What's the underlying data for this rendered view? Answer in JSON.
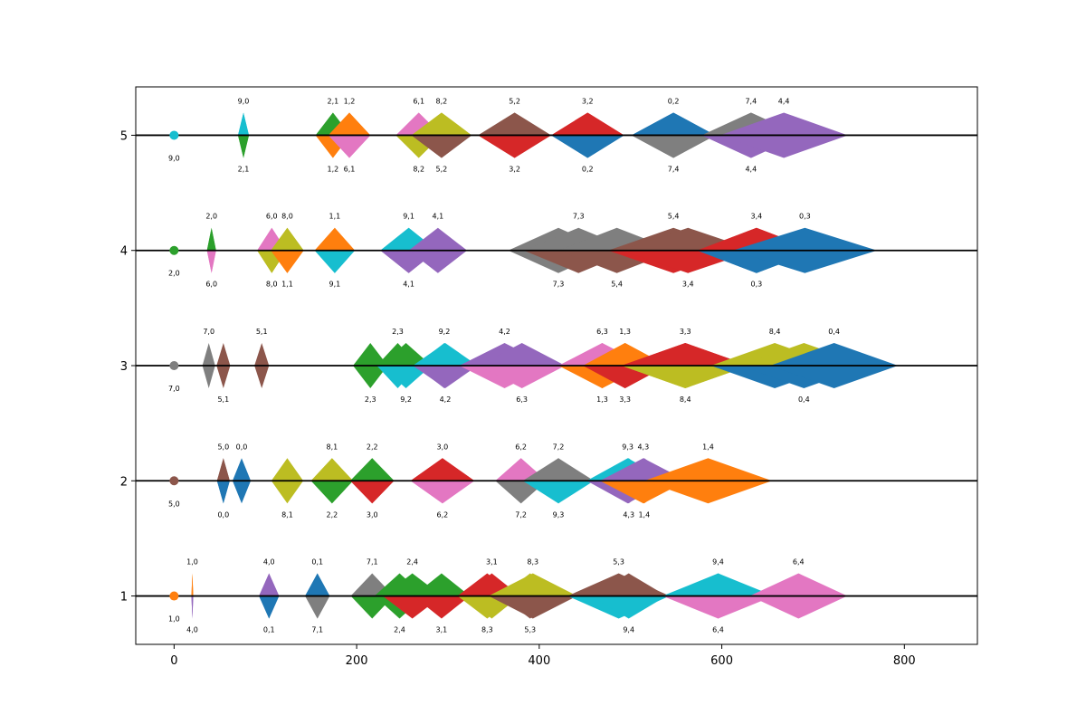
{
  "chart_data": {
    "type": "diamond-timeline",
    "title": "",
    "xlabel": "",
    "ylabel": "",
    "xlim": [
      -42,
      880
    ],
    "ylim": [
      0.58,
      5.42
    ],
    "xticks": [
      0,
      200,
      400,
      600,
      800
    ],
    "yticks": [
      1,
      2,
      3,
      4,
      5
    ],
    "grid": false,
    "colors": {
      "0": "#1f77b4",
      "1": "#ff7f0e",
      "2": "#2ca02c",
      "3": "#d62728",
      "4": "#9467bd",
      "5": "#8c564b",
      "6": "#e377c2",
      "7": "#7f7f7f",
      "8": "#bcbd22",
      "9": "#17becf"
    },
    "rows": [
      {
        "y": 1,
        "origin": {
          "x": 0,
          "color_id": "1",
          "label": "1,0"
        },
        "diamonds": [
          {
            "label": "1,0",
            "x": 20,
            "w": 2,
            "pos": "top",
            "up": "1",
            "down": "4"
          },
          {
            "label": "4,0",
            "x": 20,
            "w": 2,
            "pos": "bottom",
            "up": "1",
            "down": "4"
          },
          {
            "label": "4,0",
            "x": 104,
            "w": 22,
            "pos": "top",
            "up": "4",
            "down": "0"
          },
          {
            "label": "0,1",
            "x": 104,
            "w": 22,
            "pos": "bottom",
            "up": "4",
            "down": "0"
          },
          {
            "label": "0,1",
            "x": 157,
            "w": 27,
            "pos": "top",
            "up": "0",
            "down": "7"
          },
          {
            "label": "7,1",
            "x": 157,
            "w": 27,
            "pos": "bottom",
            "up": "0",
            "down": "7"
          },
          {
            "label": "7,1",
            "x": 217,
            "w": 47,
            "pos": "top",
            "up": "7",
            "down": "2"
          },
          {
            "label": "2,4",
            "x": 247,
            "w": 55,
            "pos": "bottom",
            "up": "2",
            "down": "2"
          },
          {
            "label": "2,4",
            "x": 261,
            "w": 65,
            "pos": "top",
            "up": "2",
            "down": "3"
          },
          {
            "label": "3,1",
            "x": 293,
            "w": 62,
            "pos": "bottom",
            "up": "2",
            "down": "3"
          },
          {
            "label": "3,1",
            "x": 348,
            "w": 62,
            "pos": "top",
            "up": "3",
            "down": "8"
          },
          {
            "label": "8,3",
            "x": 343,
            "w": 65,
            "pos": "bottom",
            "up": "3",
            "down": "8"
          },
          {
            "label": "8,3",
            "x": 393,
            "w": 97,
            "pos": "top",
            "up": "8",
            "down": "5"
          },
          {
            "label": "5,3",
            "x": 390,
            "w": 65,
            "pos": "bottom",
            "up": "8",
            "down": "5"
          },
          {
            "label": "5,3",
            "x": 487,
            "w": 112,
            "pos": "top",
            "up": "5",
            "down": "9"
          },
          {
            "label": "9,4",
            "x": 498,
            "w": 83,
            "pos": "bottom",
            "up": "5",
            "down": "9"
          },
          {
            "label": "9,4",
            "x": 596,
            "w": 122,
            "pos": "top",
            "up": "9",
            "down": "6"
          },
          {
            "label": "6,4",
            "x": 596,
            "w": 82,
            "pos": "bottom",
            "up": "9",
            "down": "6"
          },
          {
            "label": "6,4",
            "x": 684,
            "w": 107,
            "pos": "top",
            "up": "6",
            "down": "6"
          }
        ]
      },
      {
        "y": 2,
        "origin": {
          "x": 0,
          "color_id": "5",
          "label": "5,0"
        },
        "diamonds": [
          {
            "label": "5,0",
            "x": 54,
            "w": 14,
            "pos": "top",
            "up": "5",
            "down": "0"
          },
          {
            "label": "0,0",
            "x": 54,
            "w": 14,
            "pos": "bottom",
            "up": "5",
            "down": "0"
          },
          {
            "label": "0,0",
            "x": 74,
            "w": 20,
            "pos": "top",
            "up": "0",
            "down": "0"
          },
          {
            "label": "8,1",
            "x": 124,
            "w": 35,
            "pos": "bottom",
            "up": "8",
            "down": "8"
          },
          {
            "label": "8,1",
            "x": 173,
            "w": 46,
            "pos": "top",
            "up": "8",
            "down": "2"
          },
          {
            "label": "2,2",
            "x": 173,
            "w": 46,
            "pos": "bottom",
            "up": "8",
            "down": "2"
          },
          {
            "label": "2,2",
            "x": 217,
            "w": 48,
            "pos": "top",
            "up": "2",
            "down": "3"
          },
          {
            "label": "3,0",
            "x": 217,
            "w": 48,
            "pos": "bottom",
            "up": "2",
            "down": "3"
          },
          {
            "label": "3,0",
            "x": 294,
            "w": 70,
            "pos": "top",
            "up": "3",
            "down": "6"
          },
          {
            "label": "6,2",
            "x": 294,
            "w": 70,
            "pos": "bottom",
            "up": "3",
            "down": "6"
          },
          {
            "label": "6,2",
            "x": 380,
            "w": 56,
            "pos": "top",
            "up": "6",
            "down": "7"
          },
          {
            "label": "7,2",
            "x": 380,
            "w": 56,
            "pos": "bottom",
            "up": "6",
            "down": "7"
          },
          {
            "label": "7,2",
            "x": 421,
            "w": 78,
            "pos": "top",
            "up": "7",
            "down": "9"
          },
          {
            "label": "9,3",
            "x": 421,
            "w": 61,
            "pos": "bottom",
            "up": "7",
            "down": "9"
          },
          {
            "label": "9,3",
            "x": 497,
            "w": 90,
            "pos": "top",
            "up": "9",
            "down": "4"
          },
          {
            "label": "4,3",
            "x": 498,
            "w": 63,
            "pos": "bottom",
            "up": "9",
            "down": "4"
          },
          {
            "label": "4,3",
            "x": 514,
            "w": 95,
            "pos": "top",
            "up": "4",
            "down": "1"
          },
          {
            "label": "1,4",
            "x": 515,
            "w": 70,
            "pos": "bottom",
            "up": "4",
            "down": "1"
          },
          {
            "label": "1,4",
            "x": 585,
            "w": 140,
            "pos": "top",
            "up": "1",
            "down": "1"
          }
        ]
      },
      {
        "y": 3,
        "origin": {
          "x": 0,
          "color_id": "7",
          "label": "7,0"
        },
        "diamonds": [
          {
            "label": "7,0",
            "x": 38,
            "w": 14,
            "pos": "top",
            "up": "7",
            "down": "7"
          },
          {
            "label": "5,1",
            "x": 54,
            "w": 15,
            "pos": "bottom",
            "up": "5",
            "down": "5"
          },
          {
            "label": "5,1",
            "x": 96,
            "w": 16,
            "pos": "top",
            "up": "5",
            "down": "5"
          },
          {
            "label": "2,3",
            "x": 215,
            "w": 38,
            "pos": "bottom",
            "up": "2",
            "down": "2"
          },
          {
            "label": "2,3",
            "x": 245,
            "w": 46,
            "pos": "top",
            "up": "2",
            "down": "9"
          },
          {
            "label": "9,2",
            "x": 254,
            "w": 56,
            "pos": "bottom",
            "up": "2",
            "down": "9"
          },
          {
            "label": "9,2",
            "x": 296,
            "w": 64,
            "pos": "top",
            "up": "9",
            "down": "4"
          },
          {
            "label": "4,2",
            "x": 297,
            "w": 71,
            "pos": "bottom",
            "up": "9",
            "down": "4"
          },
          {
            "label": "4,2",
            "x": 362,
            "w": 99,
            "pos": "top",
            "up": "4",
            "down": "6"
          },
          {
            "label": "6,3",
            "x": 381,
            "w": 95,
            "pos": "bottom",
            "up": "4",
            "down": "6"
          },
          {
            "label": "6,3",
            "x": 469,
            "w": 96,
            "pos": "top",
            "up": "6",
            "down": "1"
          },
          {
            "label": "1,3",
            "x": 469,
            "w": 76,
            "pos": "bottom",
            "up": "6",
            "down": "1"
          },
          {
            "label": "1,3",
            "x": 494,
            "w": 92,
            "pos": "top",
            "up": "1",
            "down": "3"
          },
          {
            "label": "3,3",
            "x": 494,
            "w": 92,
            "pos": "bottom",
            "up": "1",
            "down": "3"
          },
          {
            "label": "3,3",
            "x": 560,
            "w": 140,
            "pos": "top",
            "up": "3",
            "down": "8"
          },
          {
            "label": "8,4",
            "x": 560,
            "w": 140,
            "pos": "bottom",
            "up": "3",
            "down": "8"
          },
          {
            "label": "8,4",
            "x": 658,
            "w": 140,
            "pos": "top",
            "up": "8",
            "down": "0"
          },
          {
            "label": "0,4",
            "x": 690,
            "w": 140,
            "pos": "bottom",
            "up": "8",
            "down": "0"
          },
          {
            "label": "0,4",
            "x": 723,
            "w": 140,
            "pos": "top",
            "up": "0",
            "down": "0"
          }
        ]
      },
      {
        "y": 4,
        "origin": {
          "x": 0,
          "color_id": "2",
          "label": "2,0"
        },
        "diamonds": [
          {
            "label": "2,0",
            "x": 41,
            "w": 10,
            "pos": "top",
            "up": "2",
            "down": "6"
          },
          {
            "label": "6,0",
            "x": 41,
            "w": 10,
            "pos": "bottom",
            "up": "2",
            "down": "6"
          },
          {
            "label": "6,0",
            "x": 107,
            "w": 32,
            "pos": "top",
            "up": "6",
            "down": "8"
          },
          {
            "label": "8,0",
            "x": 107,
            "w": 32,
            "pos": "bottom",
            "up": "6",
            "down": "8"
          },
          {
            "label": "8,0",
            "x": 124,
            "w": 36,
            "pos": "top",
            "up": "8",
            "down": "1"
          },
          {
            "label": "1,1",
            "x": 124,
            "w": 36,
            "pos": "bottom",
            "up": "8",
            "down": "1"
          },
          {
            "label": "1,1",
            "x": 176,
            "w": 44,
            "pos": "top",
            "up": "1",
            "down": "9"
          },
          {
            "label": "9,1",
            "x": 176,
            "w": 44,
            "pos": "bottom",
            "up": "1",
            "down": "9"
          },
          {
            "label": "9,1",
            "x": 257,
            "w": 62,
            "pos": "top",
            "up": "9",
            "down": "4"
          },
          {
            "label": "4,1",
            "x": 257,
            "w": 62,
            "pos": "bottom",
            "up": "9",
            "down": "4"
          },
          {
            "label": "4,1",
            "x": 289,
            "w": 64,
            "pos": "top",
            "up": "4",
            "down": "4"
          },
          {
            "label": "7,3",
            "x": 421,
            "w": 110,
            "pos": "bottom",
            "up": "7",
            "down": "7"
          },
          {
            "label": "7,3",
            "x": 443,
            "w": 120,
            "pos": "top",
            "up": "7",
            "down": "5"
          },
          {
            "label": "5,4",
            "x": 485,
            "w": 128,
            "pos": "bottom",
            "up": "7",
            "down": "5"
          },
          {
            "label": "5,4",
            "x": 547,
            "w": 143,
            "pos": "top",
            "up": "5",
            "down": "3"
          },
          {
            "label": "3,4",
            "x": 563,
            "w": 147,
            "pos": "bottom",
            "up": "5",
            "down": "3"
          },
          {
            "label": "3,4",
            "x": 638,
            "w": 130,
            "pos": "top",
            "up": "3",
            "down": "0"
          },
          {
            "label": "0,3",
            "x": 638,
            "w": 130,
            "pos": "bottom",
            "up": "3",
            "down": "0"
          },
          {
            "label": "0,3",
            "x": 691,
            "w": 158,
            "pos": "top",
            "up": "0",
            "down": "0"
          }
        ]
      },
      {
        "y": 5,
        "origin": {
          "x": 0,
          "color_id": "9",
          "label": "9,0"
        },
        "diamonds": [
          {
            "label": "9,0",
            "x": 76,
            "w": 12,
            "pos": "top",
            "up": "9",
            "down": "2"
          },
          {
            "label": "2,1",
            "x": 76,
            "w": 12,
            "pos": "bottom",
            "up": "9",
            "down": "2"
          },
          {
            "label": "2,1",
            "x": 174,
            "w": 38,
            "pos": "top",
            "up": "2",
            "down": "1"
          },
          {
            "label": "1,2",
            "x": 174,
            "w": 38,
            "pos": "bottom",
            "up": "2",
            "down": "1"
          },
          {
            "label": "1,2",
            "x": 192,
            "w": 46,
            "pos": "top",
            "up": "1",
            "down": "6"
          },
          {
            "label": "6,1",
            "x": 192,
            "w": 46,
            "pos": "bottom",
            "up": "1",
            "down": "6"
          },
          {
            "label": "6,1",
            "x": 268,
            "w": 50,
            "pos": "top",
            "up": "6",
            "down": "8"
          },
          {
            "label": "8,2",
            "x": 268,
            "w": 50,
            "pos": "bottom",
            "up": "6",
            "down": "8"
          },
          {
            "label": "8,2",
            "x": 293,
            "w": 66,
            "pos": "top",
            "up": "8",
            "down": "5"
          },
          {
            "label": "5,2",
            "x": 293,
            "w": 66,
            "pos": "bottom",
            "up": "8",
            "down": "5"
          },
          {
            "label": "5,2",
            "x": 373,
            "w": 80,
            "pos": "top",
            "up": "5",
            "down": "3"
          },
          {
            "label": "3,2",
            "x": 373,
            "w": 80,
            "pos": "bottom",
            "up": "5",
            "down": "3"
          },
          {
            "label": "3,2",
            "x": 453,
            "w": 80,
            "pos": "top",
            "up": "3",
            "down": "0"
          },
          {
            "label": "0,2",
            "x": 453,
            "w": 80,
            "pos": "bottom",
            "up": "3",
            "down": "0"
          },
          {
            "label": "0,2",
            "x": 547,
            "w": 92,
            "pos": "top",
            "up": "0",
            "down": "7"
          },
          {
            "label": "7,4",
            "x": 547,
            "w": 92,
            "pos": "bottom",
            "up": "0",
            "down": "7"
          },
          {
            "label": "7,4",
            "x": 632,
            "w": 108,
            "pos": "top",
            "up": "7",
            "down": "4"
          },
          {
            "label": "4,4",
            "x": 632,
            "w": 108,
            "pos": "bottom",
            "up": "7",
            "down": "4"
          },
          {
            "label": "4,4",
            "x": 668,
            "w": 140,
            "pos": "top",
            "up": "4",
            "down": "4"
          }
        ]
      }
    ]
  }
}
